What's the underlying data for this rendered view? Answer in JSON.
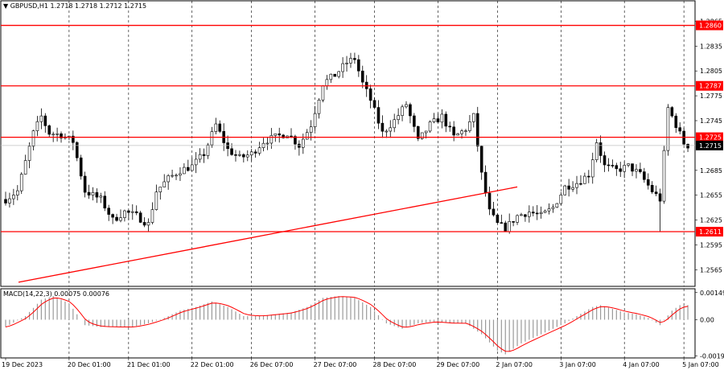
{
  "chart_data": [
    {
      "type": "candlestick",
      "title": "GBPUSD,H1",
      "ohlc_header": "1.2718 1.2718 1.2712 1.2715",
      "price_ticks": [
        "1.2865",
        "1.2835",
        "1.2805",
        "1.2775",
        "1.2745",
        "1.2685",
        "1.2655",
        "1.2625",
        "1.2595",
        "1.2565"
      ],
      "horizontal_levels": [
        {
          "value": 1.286,
          "label": "1.2860",
          "color": "#ff0000"
        },
        {
          "value": 1.2787,
          "label": "1.2787",
          "color": "#ff0000"
        },
        {
          "value": 1.2725,
          "label": "1.2725",
          "color": "#ff0000"
        },
        {
          "value": 1.2611,
          "label": "1.2611",
          "color": "#ff0000"
        }
      ],
      "current_price": {
        "value": 1.2715,
        "label": "1.2715"
      },
      "trendline": {
        "start": [
          0,
          1.255
        ],
        "end": [
          129,
          1.2665
        ],
        "color": "#ff0000"
      },
      "x_labels": [
        "19 Dec 2023",
        "20 Dec 01:00",
        "21 Dec 01:00",
        "22 Dec 01:00",
        "26 Dec 07:00",
        "27 Dec 07:00",
        "28 Dec 07:00",
        "29 Dec 07:00",
        "2 Jan 07:00",
        "3 Jan 07:00",
        "4 Jan 07:00",
        "5 Jan 07:00"
      ],
      "anchors": [
        [
          0,
          1.265
        ],
        [
          3,
          1.266
        ],
        [
          7,
          1.273
        ],
        [
          9,
          1.275
        ],
        [
          11,
          1.273
        ],
        [
          14,
          1.2728
        ],
        [
          17,
          1.272
        ],
        [
          20,
          1.266
        ],
        [
          24,
          1.265
        ],
        [
          27,
          1.2625
        ],
        [
          30,
          1.2635
        ],
        [
          33,
          1.263
        ],
        [
          36,
          1.262
        ],
        [
          38,
          1.266
        ],
        [
          41,
          1.2675
        ],
        [
          44,
          1.2685
        ],
        [
          47,
          1.269
        ],
        [
          50,
          1.2705
        ],
        [
          53,
          1.274
        ],
        [
          56,
          1.271
        ],
        [
          59,
          1.27
        ],
        [
          62,
          1.2705
        ],
        [
          65,
          1.272
        ],
        [
          68,
          1.2725
        ],
        [
          71,
          1.273
        ],
        [
          74,
          1.2715
        ],
        [
          77,
          1.274
        ],
        [
          80,
          1.279
        ],
        [
          83,
          1.28
        ],
        [
          86,
          1.2815
        ],
        [
          88,
          1.282
        ],
        [
          90,
          1.279
        ],
        [
          92,
          1.277
        ],
        [
          95,
          1.273
        ],
        [
          98,
          1.2745
        ],
        [
          101,
          1.2765
        ],
        [
          104,
          1.272
        ],
        [
          107,
          1.274
        ],
        [
          110,
          1.275
        ],
        [
          113,
          1.2725
        ],
        [
          116,
          1.2735
        ],
        [
          118,
          1.275
        ],
        [
          120,
          1.268
        ],
        [
          122,
          1.2635
        ],
        [
          124,
          1.262
        ],
        [
          126,
          1.2615
        ],
        [
          129,
          1.263
        ],
        [
          132,
          1.2635
        ],
        [
          135,
          1.263
        ],
        [
          138,
          1.264
        ],
        [
          141,
          1.2665
        ],
        [
          144,
          1.267
        ],
        [
          147,
          1.268
        ],
        [
          149,
          1.272
        ],
        [
          151,
          1.269
        ],
        [
          154,
          1.2685
        ],
        [
          157,
          1.269
        ],
        [
          160,
          1.268
        ],
        [
          163,
          1.266
        ],
        [
          165,
          1.265
        ],
        [
          167,
          1.276
        ],
        [
          169,
          1.274
        ],
        [
          171,
          1.2718
        ],
        [
          172,
          1.2715
        ]
      ],
      "lows": [
        [
          36,
          1.2611
        ],
        [
          126,
          1.2611
        ],
        [
          165,
          1.2611
        ]
      ],
      "highs": [
        [
          88,
          1.2827
        ],
        [
          167,
          1.2765
        ]
      ]
    },
    {
      "type": "histogram",
      "title": "MACD(14,22,3) 0.00075 0.00076",
      "y_ticks": [
        "0.00149",
        "0.00",
        "-0.00199"
      ],
      "anchors": [
        [
          0,
          -0.0004
        ],
        [
          5,
          0.0002
        ],
        [
          9,
          0.0011
        ],
        [
          12,
          0.0013
        ],
        [
          16,
          0.0009
        ],
        [
          20,
          -0.0003
        ],
        [
          24,
          -0.0004
        ],
        [
          28,
          -0.0004
        ],
        [
          32,
          -0.0004
        ],
        [
          36,
          -0.0002
        ],
        [
          40,
          0.0001
        ],
        [
          44,
          0.0005
        ],
        [
          48,
          0.0007
        ],
        [
          52,
          0.001
        ],
        [
          56,
          0.0007
        ],
        [
          60,
          0.0002
        ],
        [
          64,
          0.0002
        ],
        [
          68,
          0.0003
        ],
        [
          72,
          0.0004
        ],
        [
          76,
          0.0007
        ],
        [
          80,
          0.0012
        ],
        [
          84,
          0.0013
        ],
        [
          88,
          0.0012
        ],
        [
          92,
          0.0007
        ],
        [
          96,
          -0.0002
        ],
        [
          100,
          -0.0005
        ],
        [
          104,
          -0.0002
        ],
        [
          108,
          -0.0001
        ],
        [
          112,
          -0.0002
        ],
        [
          116,
          -0.0002
        ],
        [
          120,
          -0.0008
        ],
        [
          124,
          -0.0017
        ],
        [
          126,
          -0.0019
        ],
        [
          130,
          -0.0013
        ],
        [
          134,
          -0.0009
        ],
        [
          138,
          -0.0005
        ],
        [
          141,
          -0.0002
        ],
        [
          144,
          0.0002
        ],
        [
          148,
          0.0007
        ],
        [
          150,
          0.0008
        ],
        [
          153,
          0.0006
        ],
        [
          156,
          0.0004
        ],
        [
          159,
          0.0003
        ],
        [
          162,
          0.0001
        ],
        [
          165,
          -0.0003
        ],
        [
          168,
          0.0005
        ],
        [
          170,
          0.0008
        ],
        [
          172,
          0.0008
        ]
      ]
    }
  ]
}
